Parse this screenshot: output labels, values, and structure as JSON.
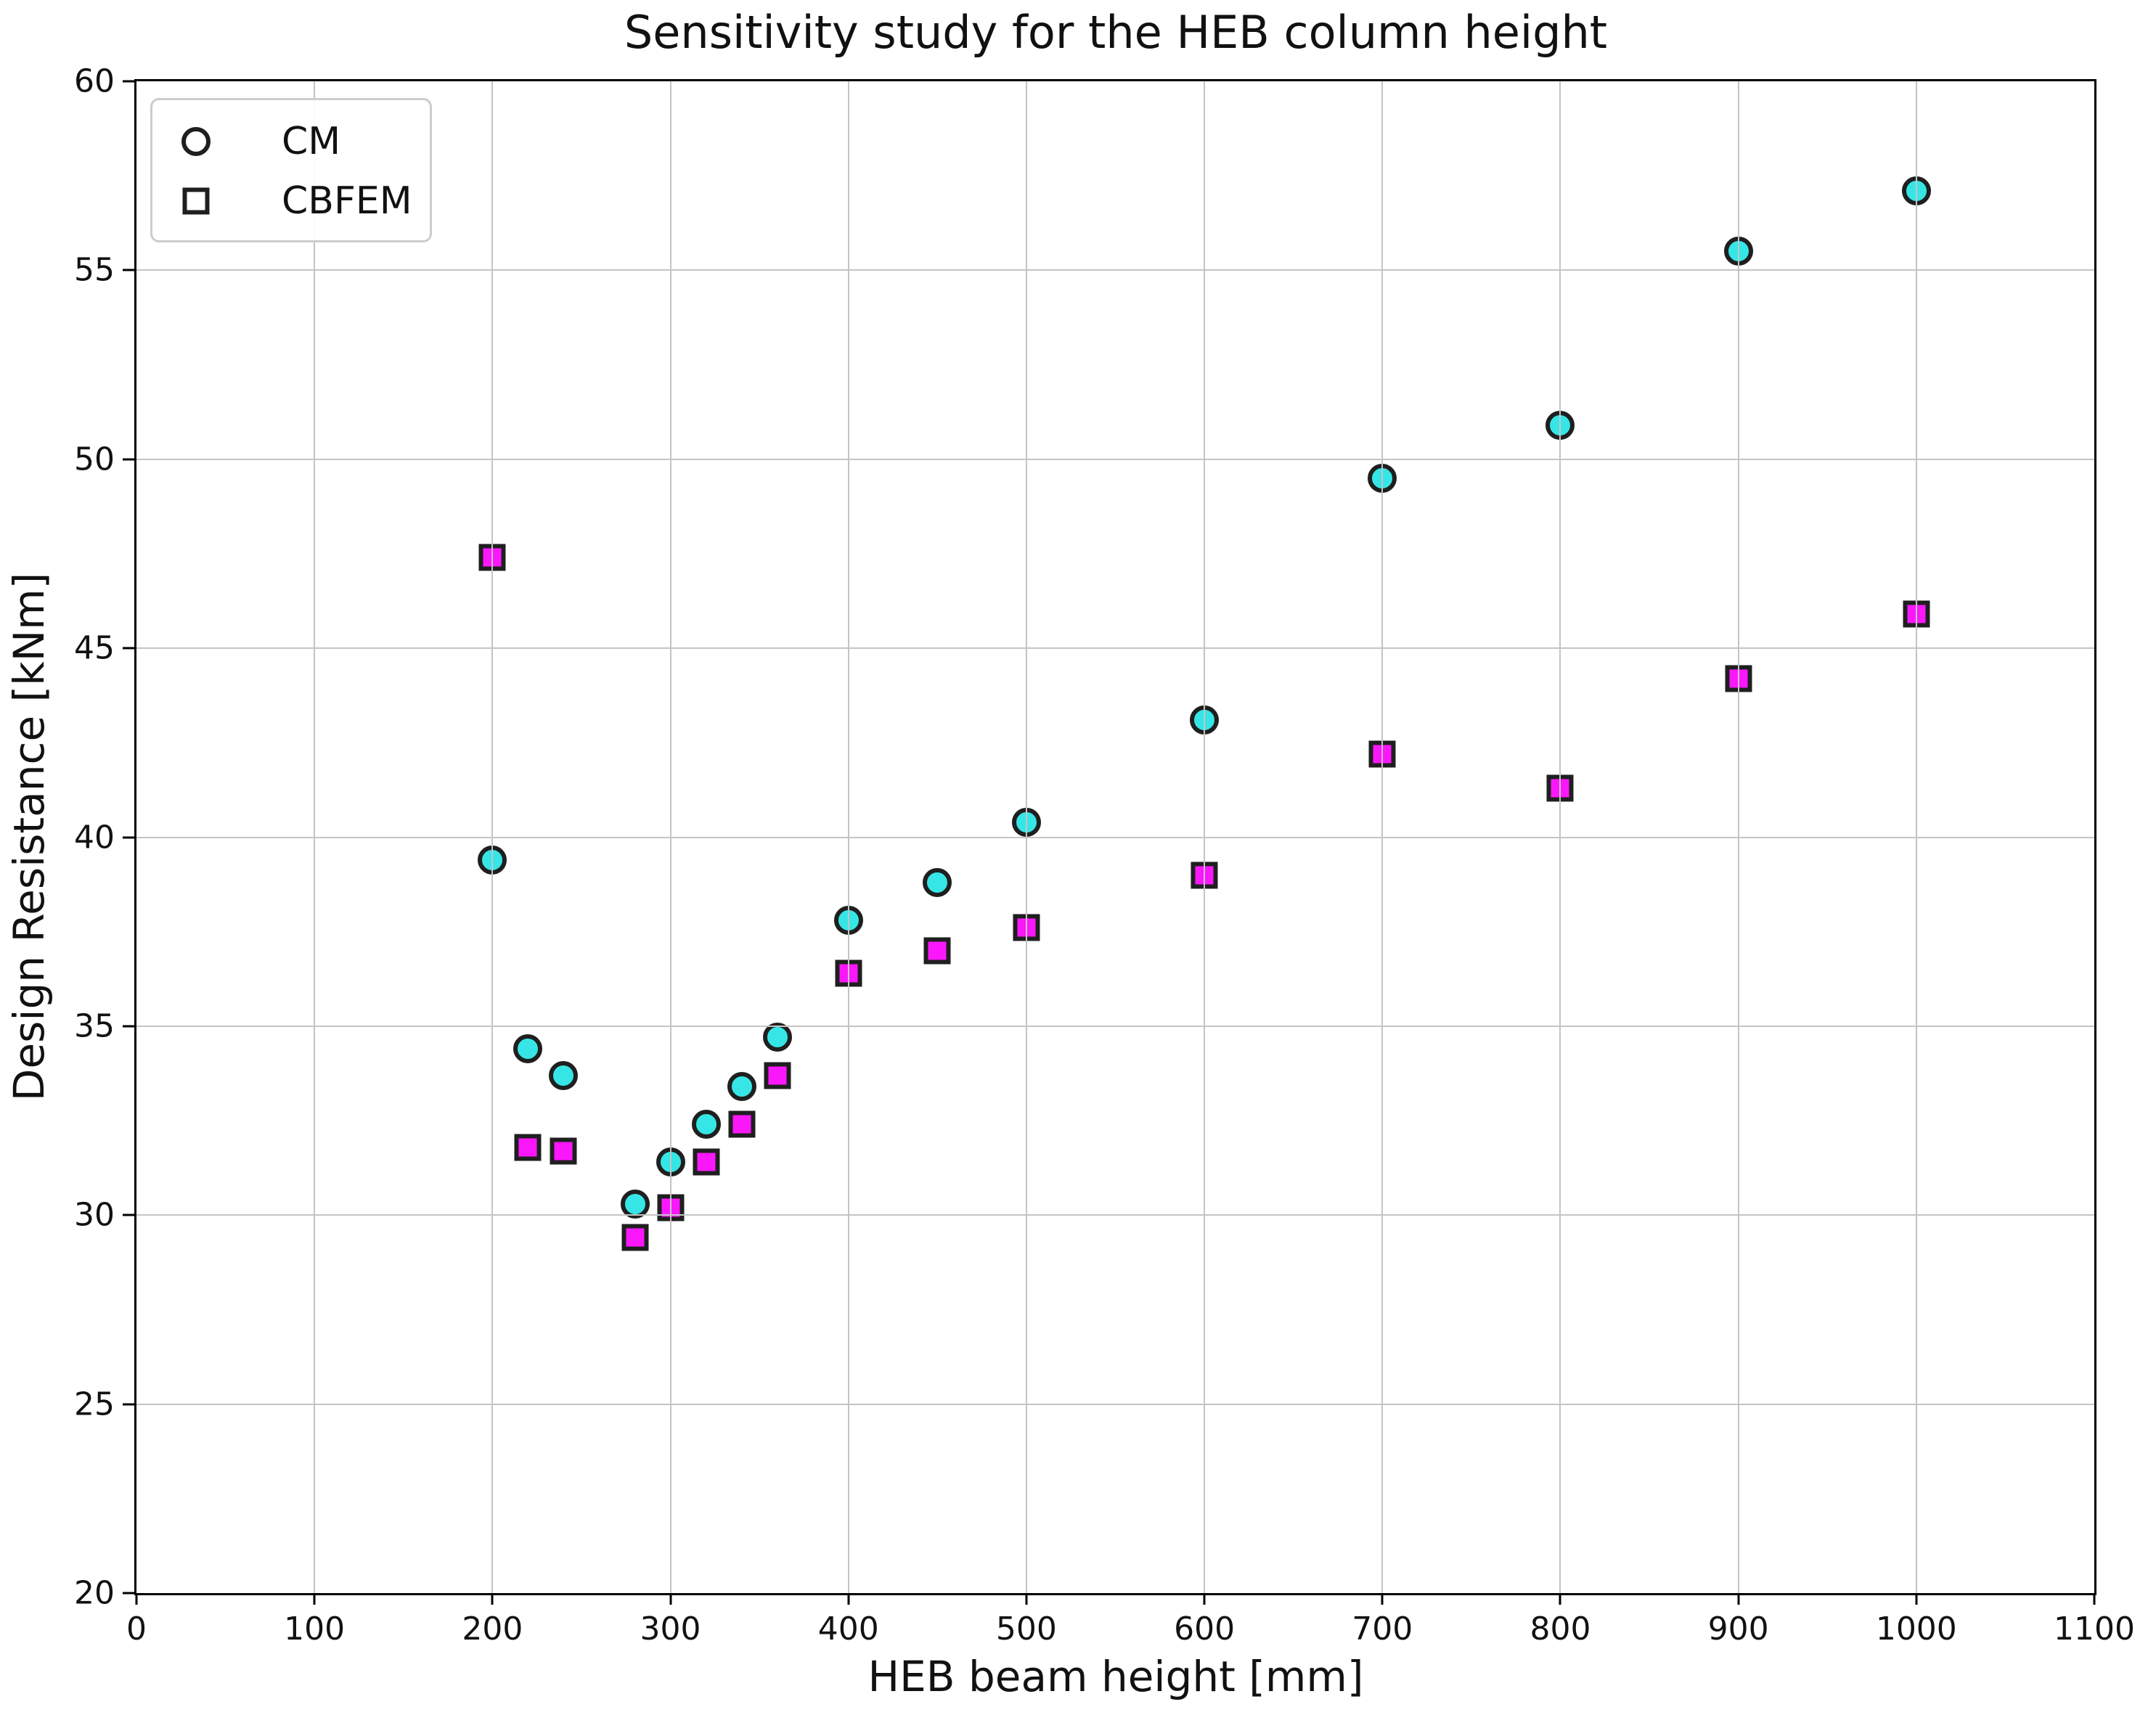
{
  "figure": {
    "title": "Sensitivity study for the HEB column height",
    "xlabel": "HEB beam height [mm]",
    "ylabel": "Design Resistance [kNm]"
  },
  "legend": {
    "position": "upper-left",
    "items": [
      {
        "label": "CM",
        "marker": "circle-marker-icon"
      },
      {
        "label": "CBFEM",
        "marker": "square-marker-icon"
      }
    ]
  },
  "colors": {
    "cm_fill": "#36e6e6",
    "cbfem_fill": "#fb17fb",
    "marker_edge": "#1f1f1f",
    "gridline": "#c4c4c4",
    "axis": "#000000",
    "text": "#111111",
    "background": "#ffffff"
  },
  "chart_data": {
    "type": "scatter",
    "title": "Sensitivity study for the HEB column height",
    "xlabel": "HEB beam height [mm]",
    "ylabel": "Design Resistance [kNm]",
    "xlim": [
      0,
      1100
    ],
    "ylim": [
      20,
      60
    ],
    "xticks": [
      0,
      100,
      200,
      300,
      400,
      500,
      600,
      700,
      800,
      900,
      1000,
      1100
    ],
    "yticks": [
      20,
      25,
      30,
      35,
      40,
      45,
      50,
      55,
      60
    ],
    "grid": true,
    "grid_above_points": true,
    "legend_position": "upper left",
    "x": [
      200,
      220,
      240,
      280,
      300,
      320,
      340,
      360,
      400,
      450,
      500,
      600,
      700,
      800,
      900,
      1000
    ],
    "series": [
      {
        "name": "CM",
        "marker": "circle",
        "color": "#36e6e6",
        "values": [
          39.4,
          34.4,
          33.7,
          30.3,
          31.4,
          32.4,
          33.4,
          34.7,
          37.8,
          38.8,
          40.4,
          43.1,
          49.5,
          50.9,
          55.5,
          57.1
        ]
      },
      {
        "name": "CBFEM",
        "marker": "square",
        "color": "#fb17fb",
        "values": [
          47.4,
          31.8,
          31.7,
          29.4,
          30.2,
          31.4,
          32.4,
          33.7,
          36.4,
          37.0,
          37.6,
          39.0,
          42.2,
          41.3,
          44.2,
          45.9
        ]
      }
    ]
  }
}
